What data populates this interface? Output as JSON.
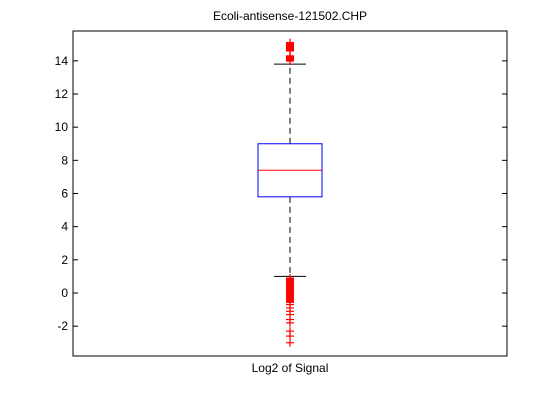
{
  "chart_data": {
    "type": "box",
    "title": "Ecoli-antisense-121502.CHP",
    "xlabel": "Log2 of Signal",
    "ylabel": "",
    "ylim": [
      -3.8,
      15.8
    ],
    "yticks": [
      -2,
      0,
      2,
      4,
      6,
      8,
      10,
      12,
      14
    ],
    "ytick_labels": [
      "-2",
      "0",
      "2",
      "4",
      "6",
      "8",
      "10",
      "12",
      "14"
    ],
    "grid": false,
    "colors": {
      "box": "#0000ff",
      "median": "#ff0000",
      "whisker": "#000000",
      "outlier": "#ff0000"
    },
    "box": {
      "q1": 5.8,
      "median": 7.4,
      "q3": 9.0,
      "whisker_low": 1.0,
      "whisker_high": 13.8
    },
    "outliers": [
      15.1,
      15.0,
      14.9,
      14.8,
      14.7,
      14.6,
      14.3,
      14.2,
      14.1,
      14.0,
      0.9,
      0.8,
      0.7,
      0.6,
      0.5,
      0.4,
      0.3,
      0.2,
      0.1,
      0.0,
      -0.1,
      -0.2,
      -0.3,
      -0.4,
      -0.5,
      -0.7,
      -0.9,
      -1.1,
      -1.3,
      -1.6,
      -1.8,
      -2.3,
      -2.6,
      -3.0
    ]
  }
}
